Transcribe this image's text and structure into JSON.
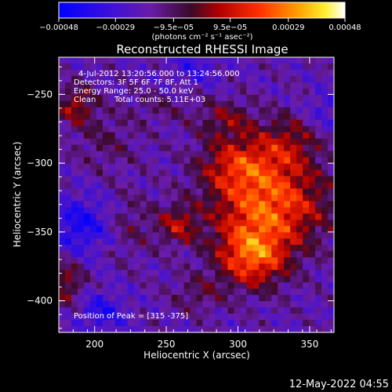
{
  "chart_data": {
    "type": "heatmap",
    "title": "Reconstructed RHESSI Image",
    "xlabel": "Heliocentric X (arcsec)",
    "ylabel": "Heliocentric Y (arcsec)",
    "xlim": [
      175,
      367
    ],
    "ylim": [
      -423,
      -223
    ],
    "x_ticks": [
      200,
      250,
      300,
      350
    ],
    "y_ticks": [
      -250,
      -300,
      -350,
      -400
    ],
    "grid": false,
    "colormap": "blue-purple-red-yellow-white",
    "colorbar": {
      "position": "top",
      "range": [
        -0.00048,
        0.00048
      ],
      "tick_values": [
        -0.00048,
        -0.00029,
        -9.5e-05,
        9.5e-05,
        0.00029,
        0.00048
      ],
      "tick_labels": [
        "−0.00048",
        "−0.00029",
        "−9.5e−05",
        "9.5e−05",
        "0.00029",
        "0.00048"
      ],
      "unit_label": "(photons cm⁻² s⁻¹ asec⁻²)"
    },
    "annotations": {
      "time_range": "4-Jul-2012 13:20:56.000 to 13:24:56.000",
      "detectors": "Detectors: 3F 5F 6F 7F 8F, Att 1",
      "energy_range": "Energy Range: 25.0 - 50.0 keV",
      "algorithm": "Clean",
      "total_counts": "Total counts: 5.11E+03",
      "peak_position": "Position of Peak = [315 -375]"
    },
    "peak": {
      "x": 315,
      "y": -375
    }
  },
  "footer": {
    "timestamp": "12-May-2022 04:55"
  }
}
